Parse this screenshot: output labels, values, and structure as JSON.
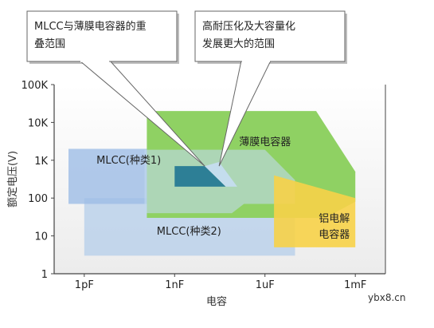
{
  "chart_data": {
    "type": "area",
    "ylabel": "额定电压(V)",
    "xlabel": "电容",
    "x_scale": "log",
    "y_scale": "log",
    "x_ticks": [
      {
        "value": 1e-12,
        "label": "1pF"
      },
      {
        "value": 1e-09,
        "label": "1nF"
      },
      {
        "value": 1e-06,
        "label": "1uF"
      },
      {
        "value": 0.001,
        "label": "1mF"
      }
    ],
    "y_ticks": [
      {
        "value": 1,
        "label": "1"
      },
      {
        "value": 10,
        "label": "10"
      },
      {
        "value": 100,
        "label": "100"
      },
      {
        "value": 1000,
        "label": "1K"
      },
      {
        "value": 10000,
        "label": "10K"
      },
      {
        "value": 100000,
        "label": "100K"
      }
    ],
    "regions": [
      {
        "key": "mlcc2",
        "label": "MLCC(种类2)",
        "color": "#b4cdea",
        "opacity": 0.75,
        "polygon": [
          [
            1e-12,
            3
          ],
          [
            1e-05,
            3
          ],
          [
            1e-05,
            100
          ],
          [
            1e-12,
            100
          ]
        ]
      },
      {
        "key": "mlcc1",
        "label": "MLCC(种类1)",
        "color": "#9dbde6",
        "opacity": 0.8,
        "polygon": [
          [
            3e-13,
            70
          ],
          [
            1e-09,
            70
          ],
          [
            1e-09,
            100
          ],
          [
            1e-07,
            100
          ],
          [
            1e-07,
            2000
          ],
          [
            3e-13,
            2000
          ]
        ]
      },
      {
        "key": "film",
        "label": "薄膜电容器",
        "color": "#8fd163",
        "opacity": 1,
        "polygon": [
          [
            1.2e-10,
            30
          ],
          [
            0.0001,
            30
          ],
          [
            0.001,
            80
          ],
          [
            0.001,
            500
          ],
          [
            5e-05,
            20000
          ],
          [
            1.2e-10,
            20000
          ]
        ]
      },
      {
        "key": "alu",
        "label": "铝电解\n电容器",
        "color": "#f7d248",
        "opacity": 0.9,
        "polygon": [
          [
            2e-06,
            5
          ],
          [
            0.001,
            5
          ],
          [
            0.001,
            100
          ],
          [
            2e-06,
            400
          ]
        ]
      }
    ],
    "overlay_region": {
      "color": "#c2d8ef",
      "opacity": 0.6,
      "polygon": [
        [
          1e-10,
          40
        ],
        [
          8e-08,
          40
        ],
        [
          2e-07,
          70
        ],
        [
          1e-05,
          70
        ],
        [
          1e-05,
          300
        ],
        [
          1e-06,
          1900
        ],
        [
          1e-10,
          1900
        ]
      ]
    },
    "overlap_mlcc_film": {
      "color": "#2d7f96",
      "polygon": [
        [
          1e-09,
          200
        ],
        [
          5e-08,
          200
        ],
        [
          1e-08,
          700
        ],
        [
          1e-09,
          700
        ]
      ]
    },
    "high_voltage_area": {
      "color": "#c4dded",
      "polygon": [
        [
          5e-08,
          200
        ],
        [
          1.2e-07,
          200
        ],
        [
          3e-08,
          900
        ],
        [
          1e-08,
          700
        ]
      ]
    },
    "callouts": [
      {
        "key": "overlap",
        "text": "MLCC与薄膜电容器的重\n叠范围",
        "target": [
          1e-08,
          700
        ]
      },
      {
        "key": "high",
        "text": "高耐压化及大容量化\n发展更大的范围",
        "target": [
          3e-08,
          700
        ]
      }
    ],
    "x_range": [
      1e-13,
      0.01
    ],
    "y_range": [
      1,
      100000
    ],
    "grid": false,
    "legend": "none"
  },
  "watermark": "ybx8.cn"
}
